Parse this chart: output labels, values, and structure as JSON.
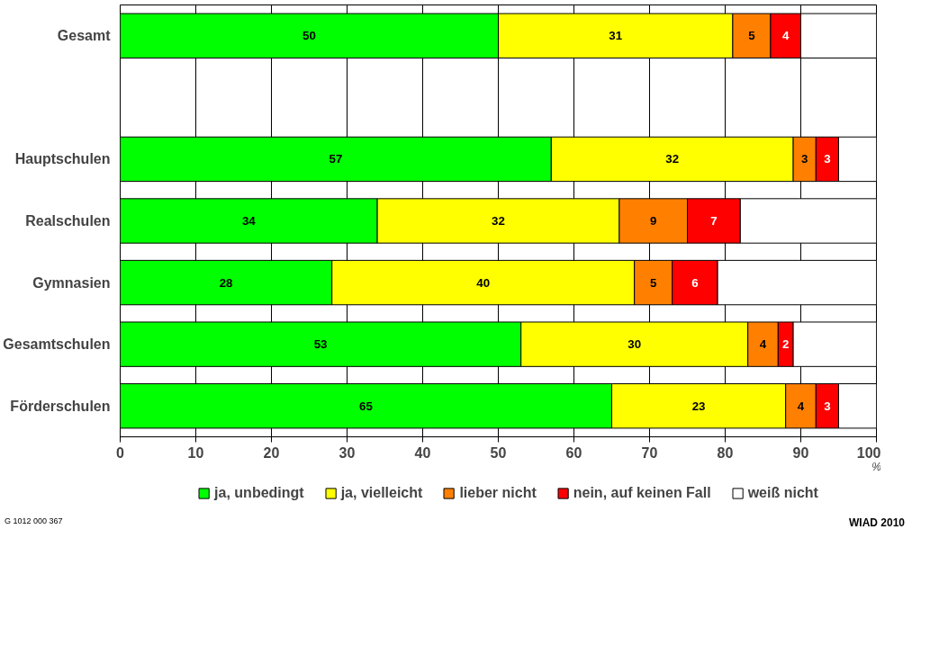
{
  "chart_data": {
    "type": "bar",
    "orientation": "horizontal",
    "stacked": true,
    "categories": [
      "Gesamt",
      null,
      "Hauptschulen",
      "Realschulen",
      "Gymnasien",
      "Gesamtschulen",
      "Förderschulen"
    ],
    "series": [
      {
        "name": "ja, unbedingt",
        "color": "#00ff00",
        "values": [
          50,
          null,
          57,
          34,
          28,
          53,
          65
        ],
        "value_labels": [
          "50",
          null,
          "57",
          "34",
          "28",
          "53",
          "65"
        ]
      },
      {
        "name": "ja, vielleicht",
        "color": "#ffff00",
        "values": [
          31,
          null,
          32,
          32,
          40,
          30,
          23
        ],
        "value_labels": [
          "31",
          null,
          "32",
          "32",
          "40",
          "30",
          "23"
        ]
      },
      {
        "name": "lieber nicht",
        "color": "#ff8000",
        "values": [
          5,
          null,
          3,
          9,
          5,
          4,
          4
        ],
        "value_labels": [
          "5",
          null,
          "3",
          "9",
          "5",
          "4",
          "4"
        ]
      },
      {
        "name": "nein, auf keinen Fall",
        "color": "#ff0000",
        "values": [
          4,
          null,
          3,
          7,
          6,
          2,
          3
        ],
        "value_labels": [
          "4",
          null,
          "3",
          "7",
          "6",
          "2",
          "3"
        ]
      },
      {
        "name": "weiß nicht",
        "color": "#ffffff",
        "values": [
          10,
          null,
          5,
          18,
          21,
          11,
          5
        ],
        "value_labels": [
          null,
          null,
          null,
          null,
          null,
          null,
          null
        ]
      }
    ],
    "xlim": [
      0,
      100
    ],
    "xticks": [
      0,
      10,
      20,
      30,
      40,
      50,
      60,
      70,
      80,
      90,
      100
    ],
    "xlabel": "%",
    "grid": "x",
    "legend": "bottom",
    "annotations": [
      "G 1012 000 367",
      "WIAD 2010"
    ]
  }
}
